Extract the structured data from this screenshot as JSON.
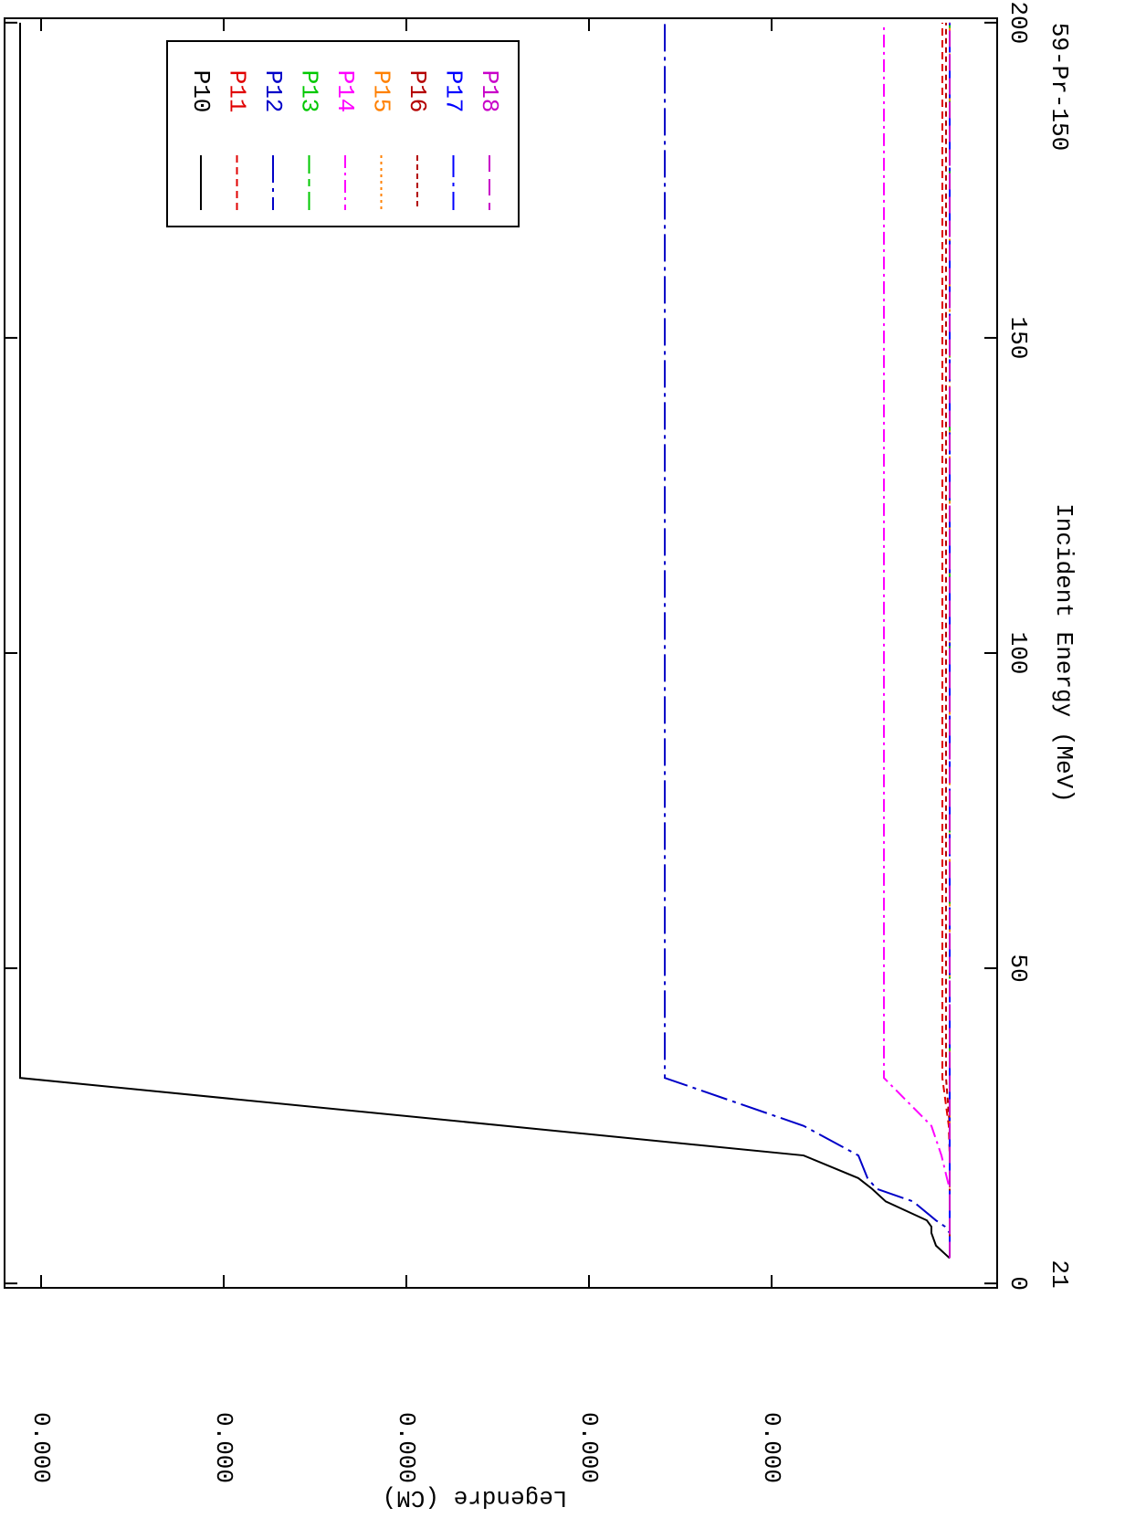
{
  "chart_data": {
    "type": "line",
    "x_label": "Incident Energy (MeV)",
    "y_label": "Legendre (CM)",
    "corner_left": "21",
    "corner_right": "59-Pr-150",
    "x": [
      4,
      6,
      8,
      9,
      10,
      13,
      15,
      16.7,
      20.3,
      25,
      32.6,
      200
    ],
    "xlim": [
      -0.7,
      200.7
    ],
    "xticks": [
      0,
      50,
      100,
      150,
      200
    ],
    "ylim": [
      -2.35e-05,
      0.00052
    ],
    "yticks": [
      {
        "value": 0.0001,
        "label": "0.000"
      },
      {
        "value": 0.0002,
        "label": "0.000"
      },
      {
        "value": 0.0003,
        "label": "0.000"
      },
      {
        "value": 0.0004,
        "label": "0.000"
      },
      {
        "value": 0.0005,
        "label": "0.000"
      }
    ],
    "legend": "top",
    "series": [
      {
        "name": "P10",
        "color": "#000000",
        "dash": "none",
        "values": [
          2.5e-06,
          1e-05,
          1.25e-05,
          1.25e-05,
          1.5e-05,
          3.75e-05,
          4.5e-05,
          5.25e-05,
          8.25e-05,
          0.000246,
          0.0005115,
          0.0005115
        ]
      },
      {
        "name": "P11",
        "color": "#e00000",
        "dash": "8 5",
        "values": [
          2.5e-06,
          2.5e-06,
          2.5e-06,
          2.5e-06,
          2.5e-06,
          2.5e-06,
          2.5e-06,
          2.5e-06,
          2.5e-06,
          3e-06,
          6.5e-06,
          6.5e-06
        ]
      },
      {
        "name": "P12",
        "color": "#0000c8",
        "dash": "30 6 4 6",
        "values": [
          2.5e-06,
          2.5e-06,
          2.5e-06,
          5e-06,
          1e-05,
          2.25e-05,
          4.25e-05,
          4.75e-05,
          5.25e-05,
          8.25e-05,
          0.0001585,
          0.0001585
        ]
      },
      {
        "name": "P13",
        "color": "#00c800",
        "dash": "20 6 8 6",
        "values": [
          2.5e-06,
          2.5e-06,
          2.5e-06,
          2.5e-06,
          2.5e-06,
          2.5e-06,
          2.5e-06,
          2.5e-06,
          2.5e-06,
          2.5e-06,
          2.5e-06,
          2.5e-06
        ]
      },
      {
        "name": "P14",
        "color": "#ff00ff",
        "dash": "14 5 3 5",
        "values": [
          2.5e-06,
          2.5e-06,
          2.5e-06,
          2.5e-06,
          2.5e-06,
          2.5e-06,
          2.5e-06,
          4e-06,
          7e-06,
          1.25e-05,
          3.85e-05,
          3.85e-05
        ]
      },
      {
        "name": "P15",
        "color": "#ff8000",
        "dash": "3 4",
        "values": [
          2.5e-06,
          2.5e-06,
          2.5e-06,
          2.5e-06,
          2.5e-06,
          2.5e-06,
          2.5e-06,
          2.5e-06,
          2.5e-06,
          2.5e-06,
          2.5e-06,
          2.5e-06
        ]
      },
      {
        "name": "P16",
        "color": "#b40000",
        "dash": "6 4",
        "values": [
          2.5e-06,
          2.5e-06,
          2.5e-06,
          2.5e-06,
          2.5e-06,
          2.5e-06,
          2.5e-06,
          2.5e-06,
          2.5e-06,
          2.5e-06,
          4.5e-06,
          4.5e-06
        ]
      },
      {
        "name": "P17",
        "color": "#0000ff",
        "dash": "24 6 4 6",
        "values": [
          2.5e-06,
          2.5e-06,
          2.5e-06,
          2.5e-06,
          2.5e-06,
          2.5e-06,
          2.5e-06,
          2.5e-06,
          2.5e-06,
          2.5e-06,
          2.5e-06,
          2.5e-06
        ]
      },
      {
        "name": "P18",
        "color": "#c800c8",
        "dash": "18 8",
        "values": [
          2.5e-06,
          2.5e-06,
          2.5e-06,
          2.5e-06,
          2.5e-06,
          2.5e-06,
          2.5e-06,
          2.5e-06,
          2.5e-06,
          2.5e-06,
          2.5e-06,
          2.5e-06
        ]
      }
    ]
  }
}
